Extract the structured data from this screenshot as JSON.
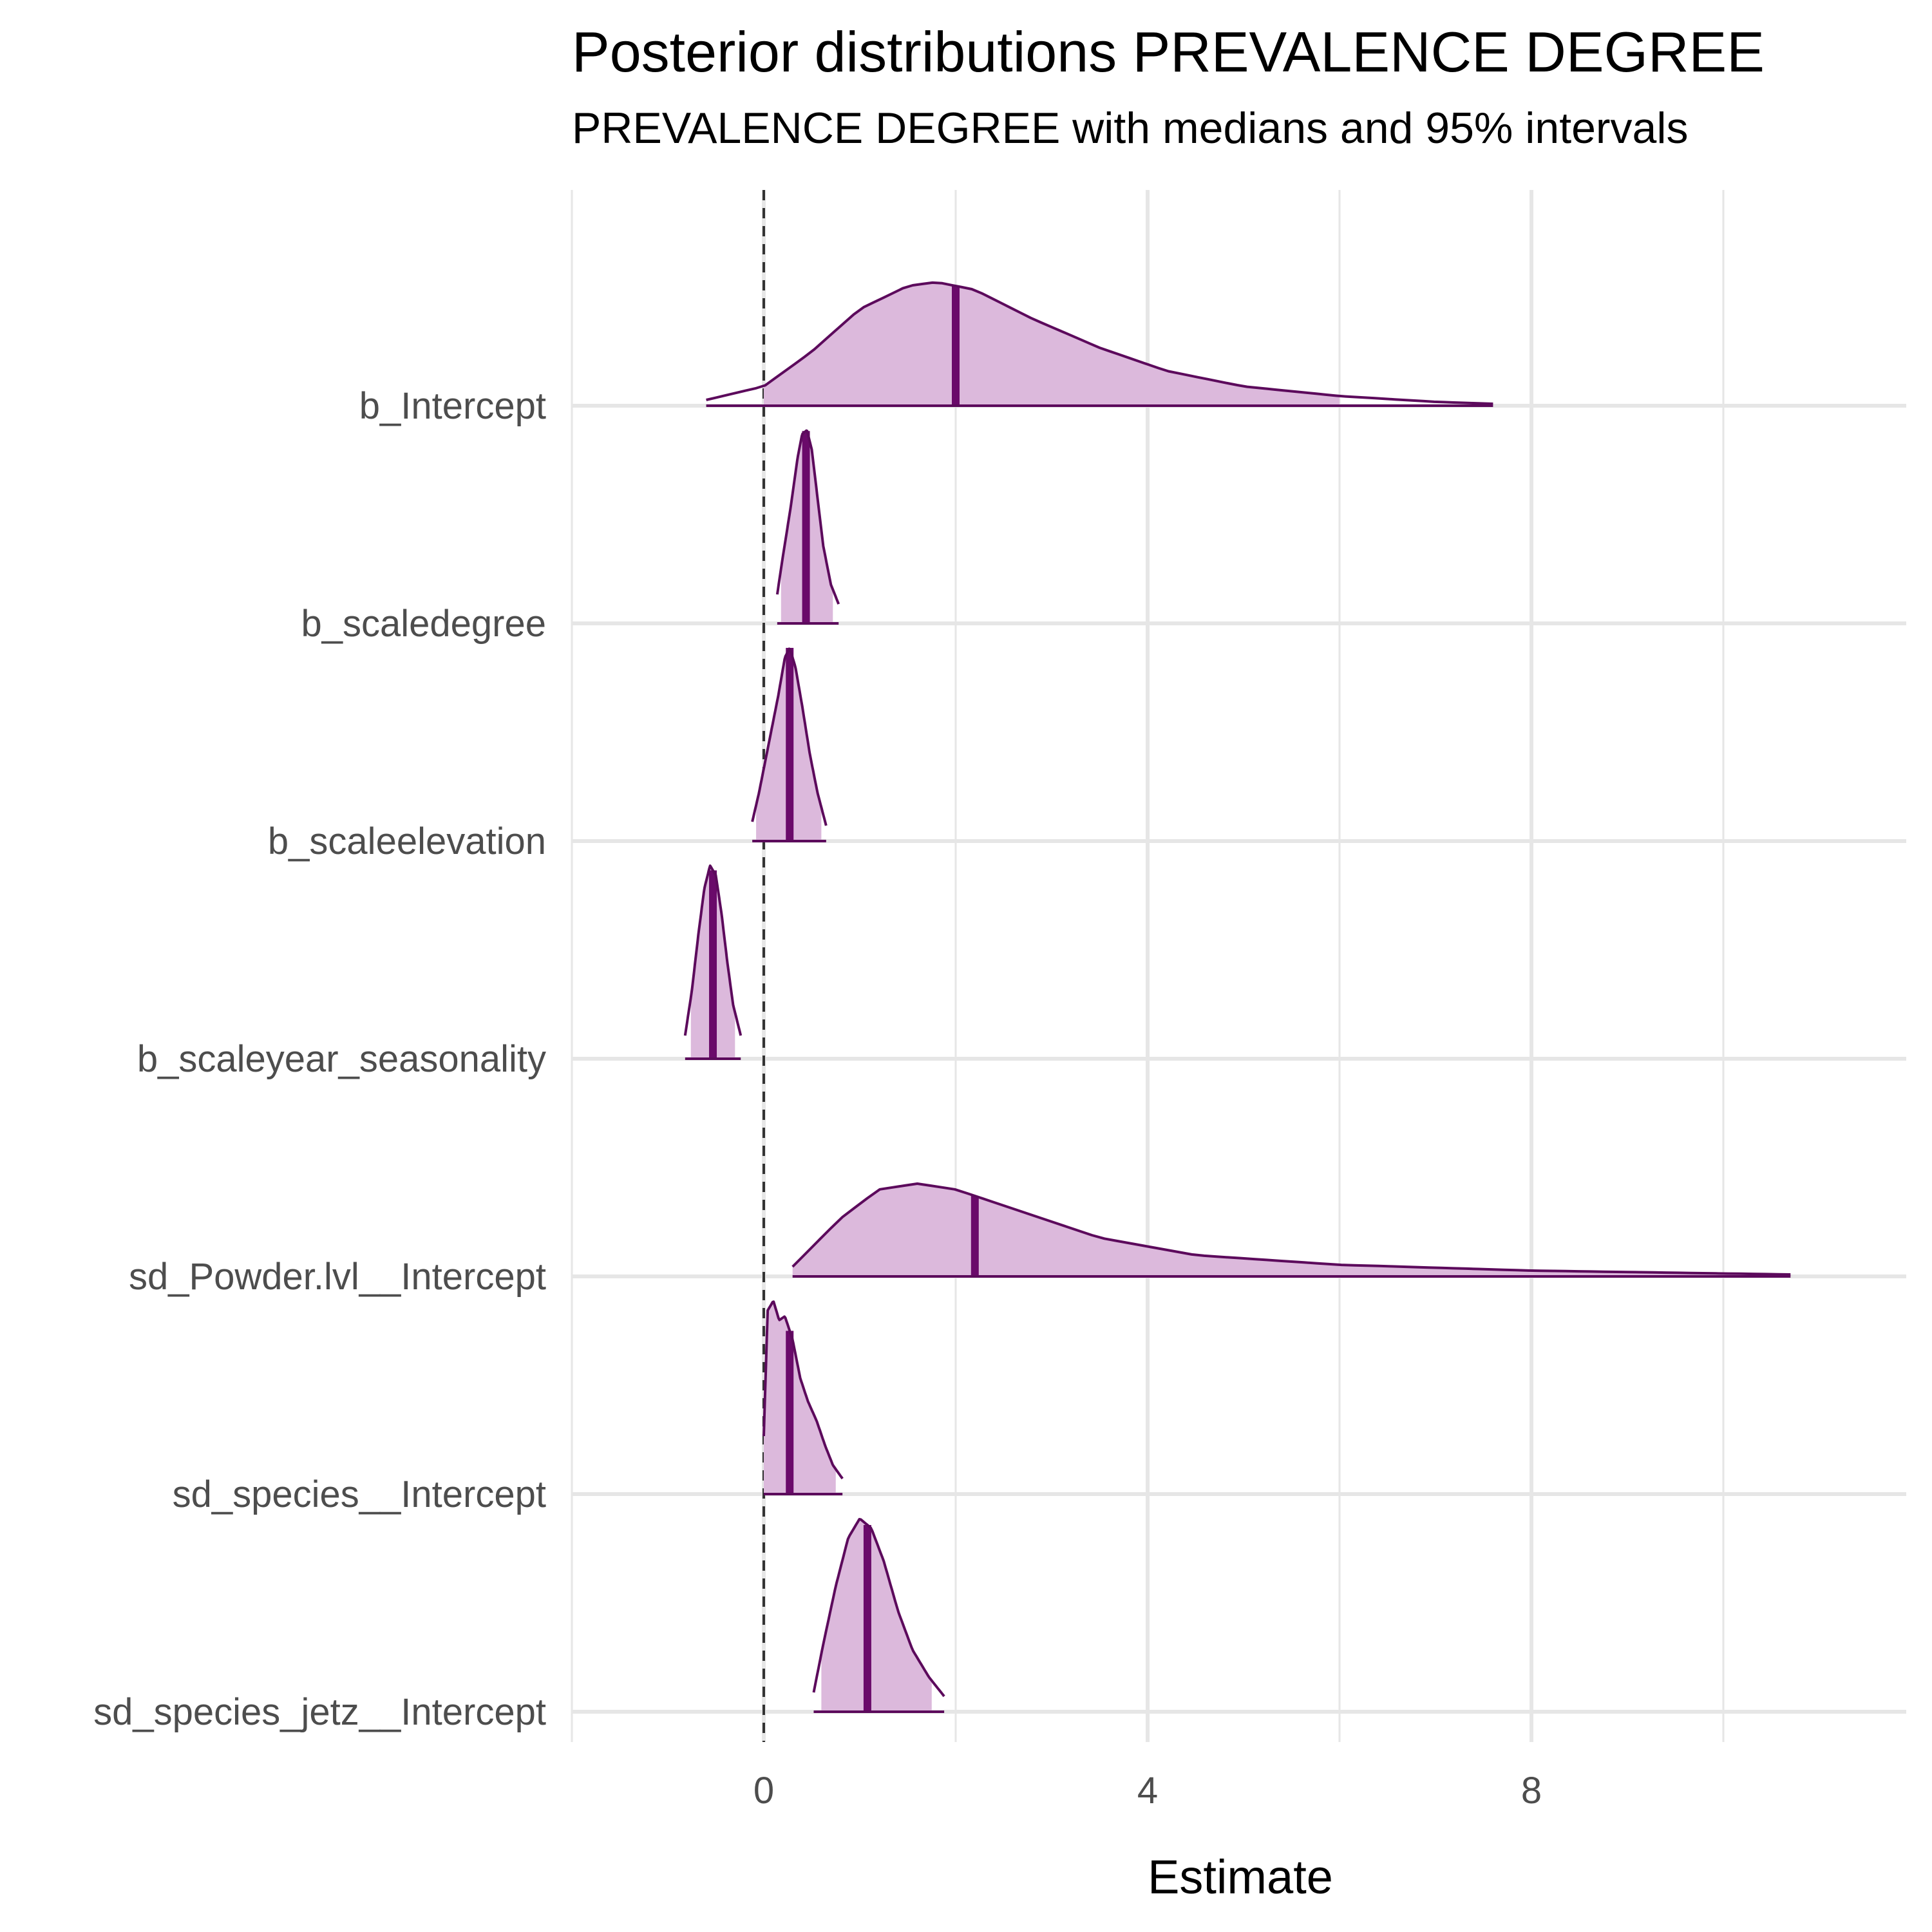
{
  "chart_data": {
    "type": "area",
    "title": "Posterior distributions PREVALENCE DEGREE",
    "subtitle": "PREVALENCE DEGREE with medians and 95% intervals",
    "xlabel": "Estimate",
    "ylabel": "",
    "xlim": [
      -2,
      11.8
    ],
    "xticks": [
      0,
      4,
      8
    ],
    "reference_line": 0,
    "grid": true,
    "colors": {
      "line": "#5c0a5c",
      "fill": "#dcb9dc",
      "median": "#6a0a6a",
      "reference": "#333333",
      "grid": "#e6e6e6"
    },
    "parameters": [
      {
        "name": "b_Intercept",
        "median": 2.0,
        "interval_95": [
          -0.6,
          7.6
        ],
        "shaded": [
          0.0,
          6.0
        ],
        "density": [
          [
            -0.6,
            0.03
          ],
          [
            0.0,
            0.1
          ],
          [
            0.5,
            0.28
          ],
          [
            1.0,
            0.5
          ],
          [
            1.5,
            0.62
          ],
          [
            1.8,
            0.64
          ],
          [
            2.2,
            0.6
          ],
          [
            2.8,
            0.45
          ],
          [
            3.5,
            0.3
          ],
          [
            4.2,
            0.18
          ],
          [
            5.0,
            0.1
          ],
          [
            6.0,
            0.05
          ],
          [
            7.0,
            0.02
          ],
          [
            7.6,
            0.01
          ]
        ]
      },
      {
        "name": "b_scaledegree",
        "median": 0.44,
        "interval_95": [
          0.14,
          0.78
        ],
        "shaded": [
          0.18,
          0.72
        ],
        "density": [
          [
            0.14,
            0.15
          ],
          [
            0.2,
            0.35
          ],
          [
            0.28,
            0.6
          ],
          [
            0.35,
            0.85
          ],
          [
            0.4,
            0.98
          ],
          [
            0.45,
            1.0
          ],
          [
            0.5,
            0.9
          ],
          [
            0.56,
            0.65
          ],
          [
            0.62,
            0.4
          ],
          [
            0.7,
            0.2
          ],
          [
            0.78,
            0.1
          ]
        ]
      },
      {
        "name": "b_scaleelevation",
        "median": 0.27,
        "interval_95": [
          -0.12,
          0.65
        ],
        "shaded": [
          -0.08,
          0.6
        ],
        "density": [
          [
            -0.12,
            0.1
          ],
          [
            -0.05,
            0.25
          ],
          [
            0.05,
            0.5
          ],
          [
            0.15,
            0.75
          ],
          [
            0.22,
            0.95
          ],
          [
            0.27,
            1.0
          ],
          [
            0.33,
            0.9
          ],
          [
            0.4,
            0.7
          ],
          [
            0.48,
            0.45
          ],
          [
            0.56,
            0.25
          ],
          [
            0.65,
            0.08
          ]
        ]
      },
      {
        "name": "b_scaleyear_seasonality",
        "median": -0.53,
        "interval_95": [
          -0.82,
          -0.24
        ],
        "shaded": [
          -0.76,
          -0.3
        ],
        "density": [
          [
            -0.82,
            0.12
          ],
          [
            -0.75,
            0.35
          ],
          [
            -0.68,
            0.65
          ],
          [
            -0.62,
            0.88
          ],
          [
            -0.56,
            1.0
          ],
          [
            -0.5,
            0.95
          ],
          [
            -0.44,
            0.75
          ],
          [
            -0.38,
            0.5
          ],
          [
            -0.32,
            0.28
          ],
          [
            -0.24,
            0.12
          ]
        ]
      },
      {
        "name": "sd_Powder.lvl__Intercept",
        "median": 2.2,
        "interval_95": [
          0.3,
          10.7
        ],
        "shaded": [
          0.3,
          10.7
        ],
        "density": [
          [
            0.3,
            0.05
          ],
          [
            0.8,
            0.3
          ],
          [
            1.2,
            0.45
          ],
          [
            1.6,
            0.48
          ],
          [
            2.0,
            0.45
          ],
          [
            2.6,
            0.35
          ],
          [
            3.5,
            0.2
          ],
          [
            4.5,
            0.11
          ],
          [
            6.0,
            0.06
          ],
          [
            8.0,
            0.03
          ],
          [
            10.7,
            0.01
          ]
        ]
      },
      {
        "name": "sd_species__Intercept",
        "median": 0.27,
        "interval_95": [
          0.0,
          0.82
        ],
        "shaded": [
          0.0,
          0.75
        ],
        "density": [
          [
            0.0,
            0.3
          ],
          [
            0.04,
            0.95
          ],
          [
            0.1,
            1.0
          ],
          [
            0.16,
            0.9
          ],
          [
            0.22,
            0.92
          ],
          [
            0.3,
            0.8
          ],
          [
            0.38,
            0.6
          ],
          [
            0.46,
            0.48
          ],
          [
            0.55,
            0.38
          ],
          [
            0.64,
            0.25
          ],
          [
            0.72,
            0.15
          ],
          [
            0.82,
            0.08
          ]
        ]
      },
      {
        "name": "sd_species_jetz__Intercept",
        "median": 1.08,
        "interval_95": [
          0.52,
          1.88
        ],
        "shaded": [
          0.6,
          1.75
        ],
        "density": [
          [
            0.52,
            0.1
          ],
          [
            0.62,
            0.35
          ],
          [
            0.75,
            0.65
          ],
          [
            0.88,
            0.9
          ],
          [
            1.0,
            1.0
          ],
          [
            1.12,
            0.95
          ],
          [
            1.25,
            0.78
          ],
          [
            1.4,
            0.52
          ],
          [
            1.55,
            0.32
          ],
          [
            1.72,
            0.18
          ],
          [
            1.88,
            0.08
          ]
        ]
      }
    ]
  }
}
